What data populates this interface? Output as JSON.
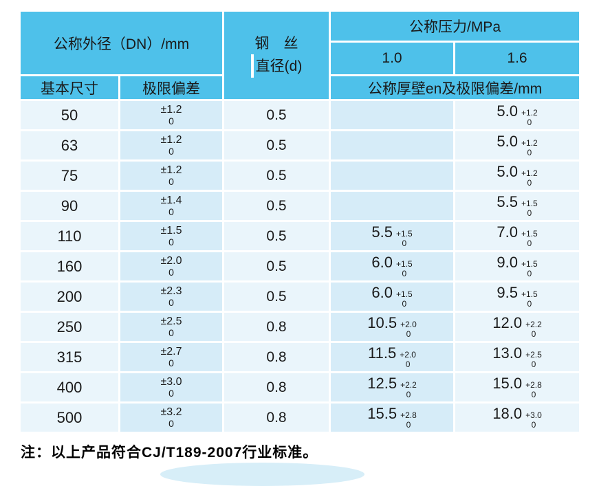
{
  "colors": {
    "header_blue": "#4ec1ea",
    "cell_light": "#eaf5fb",
    "cell_mid": "#d6ecf8",
    "text": "#1a1a1a"
  },
  "table": {
    "header": {
      "outer_diameter": "公称外径（DN）/mm",
      "wire_line1": "钢　丝",
      "wire_line2": "直径(d)",
      "pressure": "公称压力/MPa",
      "p10": "1.0",
      "p16": "1.6",
      "basic_size": "基本尺寸",
      "limit_deviation": "极限偏差",
      "thickness": "公称厚壁en及极限偏差/mm"
    },
    "rows": [
      {
        "dn": "50",
        "dev_top": "±1.2",
        "dev_bottom": "0",
        "wire": "0.5",
        "p10": null,
        "p16": {
          "val": "5.0",
          "plus": "+1.2",
          "minus": "0"
        }
      },
      {
        "dn": "63",
        "dev_top": "±1.2",
        "dev_bottom": "0",
        "wire": "0.5",
        "p10": null,
        "p16": {
          "val": "5.0",
          "plus": "+1.2",
          "minus": "0"
        }
      },
      {
        "dn": "75",
        "dev_top": "±1.2",
        "dev_bottom": "0",
        "wire": "0.5",
        "p10": null,
        "p16": {
          "val": "5.0",
          "plus": "+1.2",
          "minus": "0"
        }
      },
      {
        "dn": "90",
        "dev_top": "±1.4",
        "dev_bottom": "0",
        "wire": "0.5",
        "p10": null,
        "p16": {
          "val": "5.5",
          "plus": "+1.5",
          "minus": "0"
        }
      },
      {
        "dn": "110",
        "dev_top": "±1.5",
        "dev_bottom": "0",
        "wire": "0.5",
        "p10": {
          "val": "5.5",
          "plus": "+1.5",
          "minus": "0"
        },
        "p16": {
          "val": "7.0",
          "plus": "+1.5",
          "minus": "0"
        }
      },
      {
        "dn": "160",
        "dev_top": "±2.0",
        "dev_bottom": "0",
        "wire": "0.5",
        "p10": {
          "val": "6.0",
          "plus": "+1.5",
          "minus": "0"
        },
        "p16": {
          "val": "9.0",
          "plus": "+1.5",
          "minus": "0"
        }
      },
      {
        "dn": "200",
        "dev_top": "±2.3",
        "dev_bottom": "0",
        "wire": "0.5",
        "p10": {
          "val": "6.0",
          "plus": "+1.5",
          "minus": "0"
        },
        "p16": {
          "val": "9.5",
          "plus": "+1.5",
          "minus": "0"
        }
      },
      {
        "dn": "250",
        "dev_top": "±2.5",
        "dev_bottom": "0",
        "wire": "0.8",
        "p10": {
          "val": "10.5",
          "plus": "+2.0",
          "minus": "0"
        },
        "p16": {
          "val": "12.0",
          "plus": "+2.2",
          "minus": "0"
        }
      },
      {
        "dn": "315",
        "dev_top": "±2.7",
        "dev_bottom": "0",
        "wire": "0.8",
        "p10": {
          "val": "11.5",
          "plus": "+2.0",
          "minus": "0"
        },
        "p16": {
          "val": "13.0",
          "plus": "+2.5",
          "minus": "0"
        }
      },
      {
        "dn": "400",
        "dev_top": "±3.0",
        "dev_bottom": "0",
        "wire": "0.8",
        "p10": {
          "val": "12.5",
          "plus": "+2.2",
          "minus": "0"
        },
        "p16": {
          "val": "15.0",
          "plus": "+2.8",
          "minus": "0"
        }
      },
      {
        "dn": "500",
        "dev_top": "±3.2",
        "dev_bottom": "0",
        "wire": "0.8",
        "p10": {
          "val": "15.5",
          "plus": "+2.8",
          "minus": "0"
        },
        "p16": {
          "val": "18.0",
          "plus": "+3.0",
          "minus": "0"
        }
      }
    ]
  },
  "note": "注：以上产品符合CJ/T189-2007行业标准。"
}
